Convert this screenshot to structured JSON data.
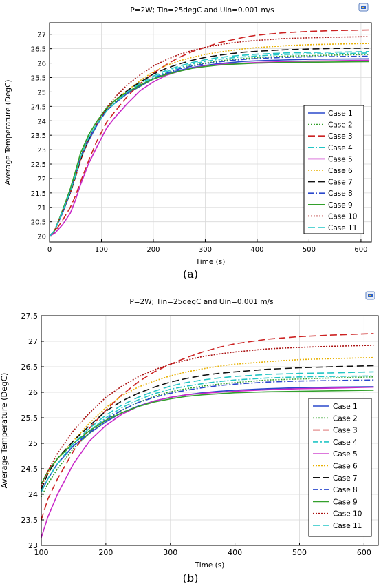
{
  "chart_data": [
    {
      "type": "line",
      "title": "P=2W; Tin=25degC and Uin=0.001 m/s",
      "xlabel": "Time (s)",
      "ylabel": "Average Temperature (DegC)",
      "caption": "(a)",
      "xlim": [
        0,
        620
      ],
      "ylim": [
        19.8,
        27.4
      ],
      "xticks": [
        0,
        100,
        200,
        300,
        400,
        500,
        600
      ],
      "yticks": [
        20,
        20.5,
        21,
        21.5,
        22,
        22.5,
        23,
        23.5,
        24,
        24.5,
        25,
        25.5,
        26,
        26.5,
        27
      ],
      "grid": true,
      "legend": "right",
      "x": [
        0,
        10,
        25,
        40,
        50,
        60,
        75,
        90,
        100,
        110,
        125,
        150,
        175,
        200,
        225,
        250,
        275,
        300,
        325,
        350,
        375,
        400,
        450,
        500,
        550,
        615
      ],
      "series": [
        {
          "name": "Case 1",
          "color": "#2a48cc",
          "dash": "solid",
          "values": [
            20,
            20.2,
            20.8,
            21.5,
            22.1,
            22.7,
            23.3,
            23.8,
            24.1,
            24.35,
            24.6,
            24.95,
            25.2,
            25.45,
            25.62,
            25.75,
            25.85,
            25.92,
            25.98,
            26.02,
            26.06,
            26.08,
            26.11,
            26.13,
            26.14,
            26.15
          ]
        },
        {
          "name": "Case 2",
          "color": "#33a02c",
          "dash": "2,2",
          "values": [
            20,
            20.2,
            20.9,
            21.6,
            22.2,
            22.85,
            23.5,
            23.95,
            24.15,
            24.4,
            24.65,
            24.95,
            25.2,
            25.45,
            25.65,
            25.8,
            25.92,
            26.0,
            26.07,
            26.12,
            26.16,
            26.19,
            26.24,
            26.26,
            26.28,
            26.3
          ]
        },
        {
          "name": "Case 3",
          "color": "#cc2222",
          "dash": "10,5",
          "values": [
            20,
            20.15,
            20.55,
            21.0,
            21.4,
            21.9,
            22.6,
            23.25,
            23.6,
            23.95,
            24.3,
            24.85,
            25.3,
            25.65,
            25.95,
            26.2,
            26.4,
            26.55,
            26.7,
            26.8,
            26.9,
            26.97,
            27.05,
            27.1,
            27.13,
            27.15
          ]
        },
        {
          "name": "Case 4",
          "color": "#22c5c5",
          "dash": "8,3,2,3",
          "values": [
            20,
            20.2,
            20.85,
            21.55,
            22.1,
            22.75,
            23.4,
            23.85,
            24.1,
            24.35,
            24.6,
            24.95,
            25.25,
            25.5,
            25.7,
            25.85,
            25.97,
            26.06,
            26.13,
            26.18,
            26.22,
            26.25,
            26.3,
            26.32,
            26.33,
            26.35
          ]
        },
        {
          "name": "Case 5",
          "color": "#c828c8",
          "dash": "solid",
          "values": [
            20,
            20.1,
            20.4,
            20.8,
            21.25,
            21.8,
            22.5,
            23.05,
            23.4,
            23.75,
            24.1,
            24.6,
            25.05,
            25.35,
            25.58,
            25.72,
            25.83,
            25.9,
            25.95,
            25.98,
            26.0,
            26.02,
            26.05,
            26.07,
            26.08,
            26.1
          ]
        },
        {
          "name": "Case 6",
          "color": "#e8b000",
          "dash": "2,2",
          "values": [
            20,
            20.2,
            20.85,
            21.5,
            22.05,
            22.65,
            23.35,
            23.85,
            24.1,
            24.4,
            24.7,
            25.05,
            25.4,
            25.7,
            25.92,
            26.08,
            26.2,
            26.3,
            26.38,
            26.44,
            26.5,
            26.54,
            26.6,
            26.64,
            26.66,
            26.68
          ]
        },
        {
          "name": "Case 7",
          "color": "#111111",
          "dash": "10,5",
          "values": [
            20,
            20.2,
            20.85,
            21.5,
            22.05,
            22.65,
            23.35,
            23.85,
            24.1,
            24.4,
            24.7,
            25.05,
            25.35,
            25.62,
            25.82,
            25.97,
            26.1,
            26.2,
            26.27,
            26.33,
            26.38,
            26.41,
            26.46,
            26.49,
            26.51,
            26.52
          ]
        },
        {
          "name": "Case 8",
          "color": "#2a48cc",
          "dash": "8,3,2,3",
          "values": [
            20,
            20.2,
            20.85,
            21.55,
            22.1,
            22.75,
            23.4,
            23.85,
            24.1,
            24.35,
            24.6,
            24.95,
            25.22,
            25.47,
            25.65,
            25.8,
            25.9,
            25.98,
            26.04,
            26.09,
            26.13,
            26.16,
            26.2,
            26.22,
            26.23,
            26.24
          ]
        },
        {
          "name": "Case 9",
          "color": "#33a02c",
          "dash": "solid",
          "values": [
            20,
            20.2,
            20.9,
            21.65,
            22.25,
            22.9,
            23.5,
            23.95,
            24.2,
            24.45,
            24.7,
            25.0,
            25.25,
            25.45,
            25.6,
            25.72,
            25.82,
            25.88,
            25.93,
            25.96,
            25.98,
            26.0,
            26.02,
            26.03,
            26.04,
            26.05
          ]
        },
        {
          "name": "Case 10",
          "color": "#aa1111",
          "dash": "2,2",
          "values": [
            20,
            20.2,
            20.85,
            21.5,
            22.05,
            22.65,
            23.35,
            23.85,
            24.15,
            24.45,
            24.8,
            25.25,
            25.6,
            25.9,
            26.12,
            26.3,
            26.44,
            26.55,
            26.63,
            26.7,
            26.75,
            26.79,
            26.85,
            26.88,
            26.9,
            26.92
          ]
        },
        {
          "name": "Case 11",
          "color": "#22c5c5",
          "dash": "10,5",
          "values": [
            20,
            20.2,
            20.85,
            21.55,
            22.1,
            22.75,
            23.4,
            23.85,
            24.1,
            24.35,
            24.6,
            25.0,
            25.3,
            25.55,
            25.75,
            25.9,
            26.02,
            26.12,
            26.19,
            26.24,
            26.28,
            26.31,
            26.35,
            26.37,
            26.38,
            26.4
          ]
        }
      ]
    },
    {
      "type": "line",
      "title": "P=2W; Tin=25degC and Uin=0.001 m/s",
      "xlabel": "Time (s)",
      "ylabel": "Average Temperature (DegC)",
      "caption": "(b)",
      "xlim": [
        100,
        622
      ],
      "ylim": [
        23,
        27.5
      ],
      "xticks": [
        100,
        200,
        300,
        400,
        500,
        600
      ],
      "yticks": [
        23,
        23.5,
        24,
        24.5,
        25,
        25.5,
        26,
        26.5,
        27,
        27.5
      ],
      "grid": true,
      "legend": "right",
      "x": [
        100,
        110,
        125,
        150,
        175,
        200,
        225,
        250,
        275,
        300,
        325,
        350,
        375,
        400,
        450,
        500,
        550,
        615
      ],
      "series": [
        {
          "name": "Case 1",
          "color": "#2a48cc",
          "dash": "solid",
          "values": [
            24.05,
            24.3,
            24.6,
            24.95,
            25.2,
            25.42,
            25.6,
            25.73,
            25.83,
            25.9,
            25.95,
            25.99,
            26.02,
            26.04,
            26.07,
            26.09,
            26.1,
            26.11
          ]
        },
        {
          "name": "Case 2",
          "color": "#33a02c",
          "dash": "2,2",
          "values": [
            23.95,
            24.2,
            24.5,
            24.9,
            25.2,
            25.45,
            25.65,
            25.8,
            25.92,
            26.01,
            26.07,
            26.12,
            26.16,
            26.19,
            26.24,
            26.26,
            26.28,
            26.3
          ]
        },
        {
          "name": "Case 3",
          "color": "#cc2222",
          "dash": "10,5",
          "values": [
            23.5,
            23.9,
            24.3,
            24.85,
            25.3,
            25.65,
            25.95,
            26.2,
            26.4,
            26.55,
            26.68,
            26.79,
            26.88,
            26.95,
            27.04,
            27.09,
            27.12,
            27.15
          ]
        },
        {
          "name": "Case 4",
          "color": "#22c5c5",
          "dash": "8,3,2,3",
          "values": [
            24.05,
            24.3,
            24.6,
            24.95,
            25.25,
            25.5,
            25.7,
            25.85,
            25.97,
            26.06,
            26.12,
            26.17,
            26.21,
            26.24,
            26.28,
            26.3,
            26.31,
            26.32
          ]
        },
        {
          "name": "Case 5",
          "color": "#c828c8",
          "dash": "solid",
          "values": [
            23.15,
            23.55,
            24.0,
            24.6,
            25.05,
            25.35,
            25.57,
            25.72,
            25.83,
            25.9,
            25.95,
            25.98,
            26.0,
            26.02,
            26.05,
            26.07,
            26.08,
            26.1
          ]
        },
        {
          "name": "Case 6",
          "color": "#e8b000",
          "dash": "2,2",
          "values": [
            24.1,
            24.4,
            24.7,
            25.05,
            25.4,
            25.7,
            25.93,
            26.1,
            26.22,
            26.32,
            26.4,
            26.46,
            26.51,
            26.55,
            26.6,
            26.64,
            26.66,
            26.68
          ]
        },
        {
          "name": "Case 7",
          "color": "#111111",
          "dash": "10,5",
          "values": [
            24.1,
            24.4,
            24.7,
            25.05,
            25.35,
            25.63,
            25.83,
            25.98,
            26.1,
            26.2,
            26.27,
            26.33,
            26.37,
            26.4,
            26.45,
            26.48,
            26.5,
            26.52
          ]
        },
        {
          "name": "Case 8",
          "color": "#2a48cc",
          "dash": "8,3,2,3",
          "values": [
            24.05,
            24.3,
            24.6,
            24.95,
            25.22,
            25.47,
            25.65,
            25.8,
            25.9,
            25.98,
            26.04,
            26.09,
            26.13,
            26.16,
            26.2,
            26.22,
            26.23,
            26.24
          ]
        },
        {
          "name": "Case 9",
          "color": "#33a02c",
          "dash": "solid",
          "values": [
            24.2,
            24.45,
            24.7,
            25.0,
            25.25,
            25.45,
            25.6,
            25.72,
            25.81,
            25.87,
            25.92,
            25.95,
            25.97,
            25.99,
            26.01,
            26.02,
            26.03,
            26.04
          ]
        },
        {
          "name": "Case 10",
          "color": "#aa1111",
          "dash": "2,2",
          "values": [
            24.15,
            24.45,
            24.8,
            25.25,
            25.6,
            25.9,
            26.12,
            26.3,
            26.44,
            26.55,
            26.63,
            26.7,
            26.75,
            26.79,
            26.85,
            26.88,
            26.9,
            26.92
          ]
        },
        {
          "name": "Case 11",
          "color": "#22c5c5",
          "dash": "10,5",
          "values": [
            24.05,
            24.3,
            24.6,
            25.0,
            25.3,
            25.55,
            25.75,
            25.9,
            26.02,
            26.12,
            26.19,
            26.24,
            26.28,
            26.31,
            26.35,
            26.37,
            26.38,
            26.4
          ]
        }
      ]
    }
  ]
}
